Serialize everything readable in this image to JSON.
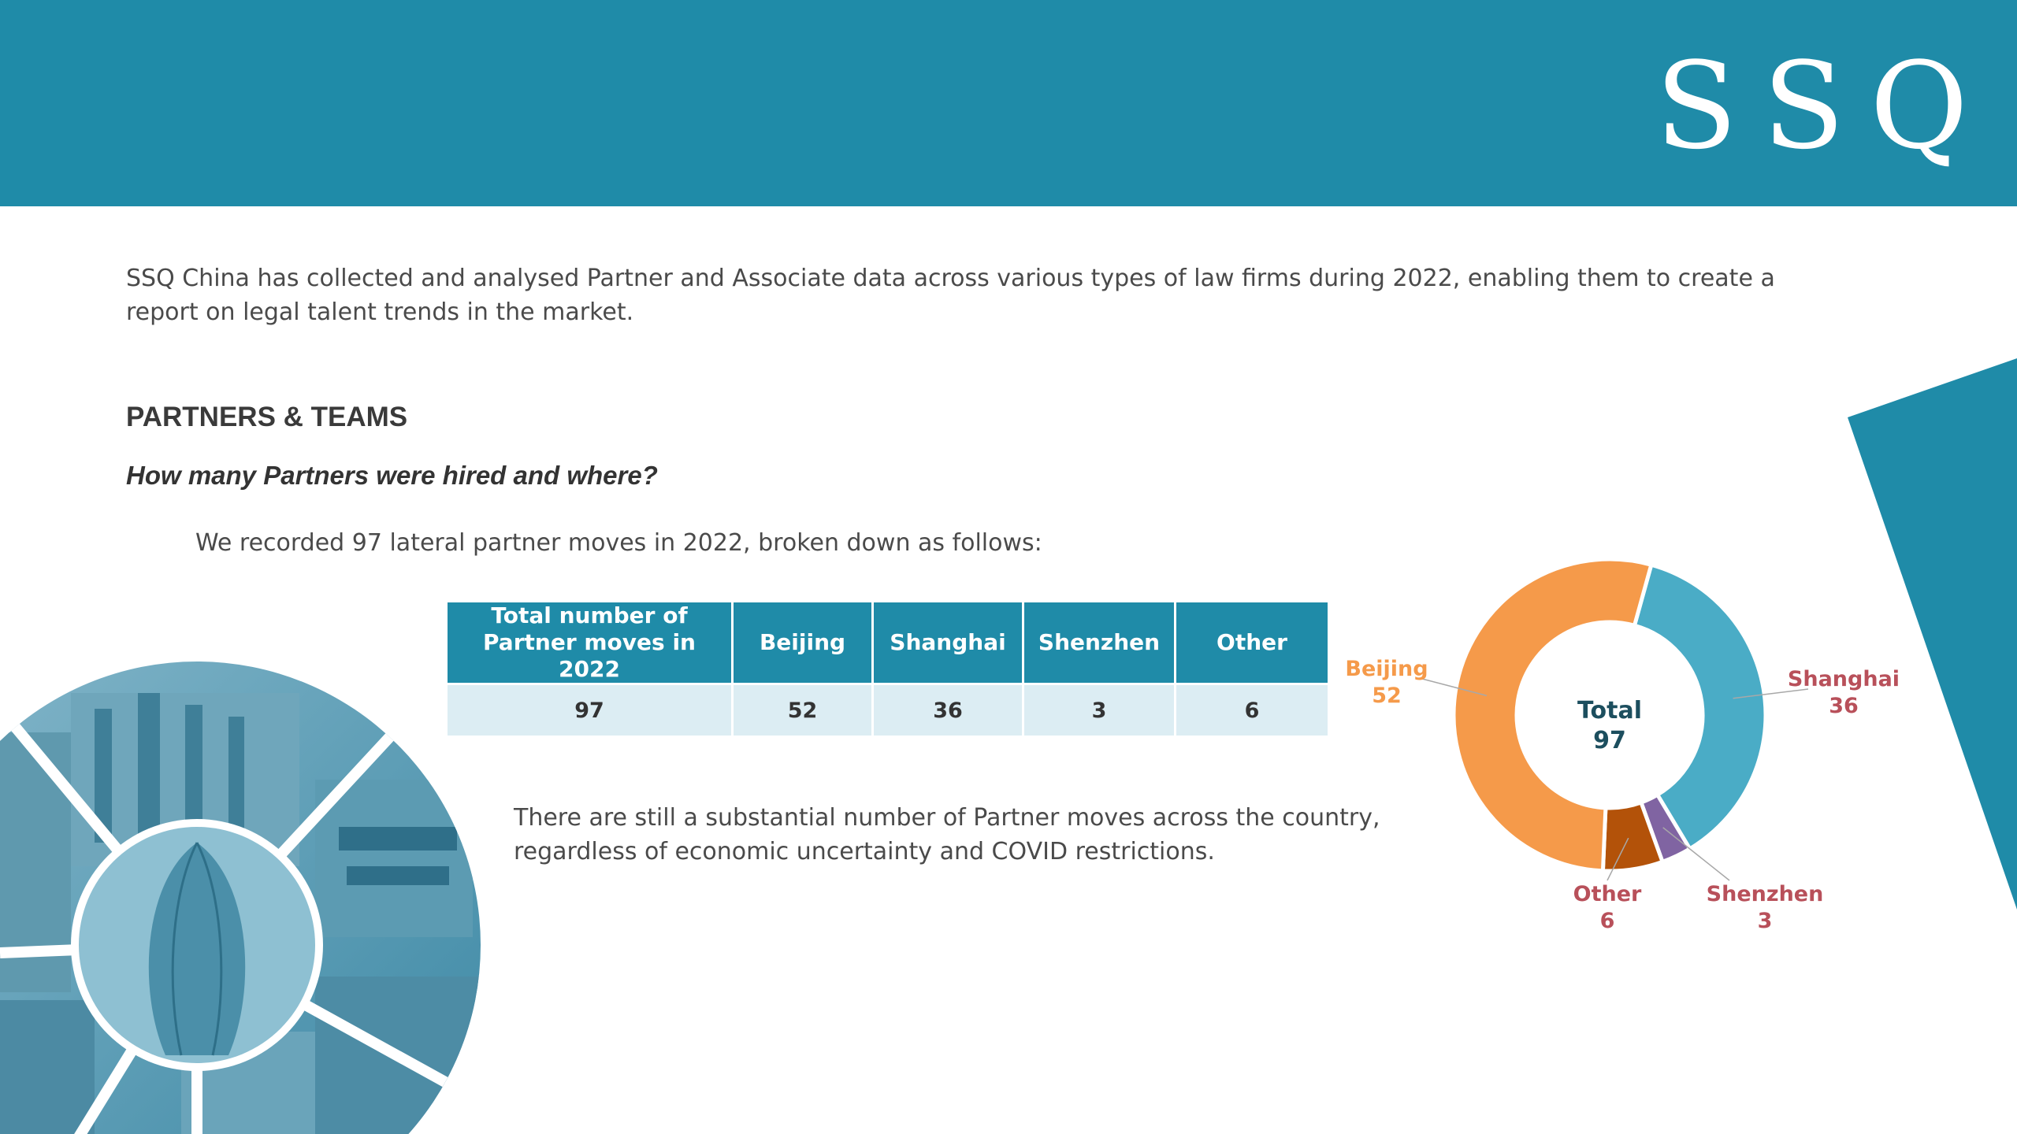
{
  "brand": {
    "logo_letters": [
      "S",
      "S",
      "Q"
    ],
    "primary_color": "#1f8ba8"
  },
  "intro_text": "SSQ China has collected and analysed Partner and Associate data across various types of law firms during 2022, enabling them to create a report on legal talent trends in the market.",
  "section": {
    "heading": "PARTNERS & TEAMS",
    "question": "How many Partners were hired and where?",
    "lead": "We recorded 97 lateral partner moves in 2022, broken down as follows:"
  },
  "table": {
    "headers": [
      "Total number of Partner moves in 2022",
      "Beijing",
      "Shanghai",
      "Shenzhen",
      "Other"
    ],
    "row": [
      "97",
      "52",
      "36",
      "3",
      "6"
    ]
  },
  "note": "There are still a substantial number of Partner moves across the country, regardless of economic uncertainty and COVID restrictions.",
  "chart_data": {
    "type": "pie",
    "categories": [
      "Shanghai",
      "Shenzhen",
      "Other",
      "Beijing"
    ],
    "values": [
      36,
      3,
      6,
      52
    ],
    "colors": [
      "#4aacc6",
      "#8064a2",
      "#b35209",
      "#f59a4a"
    ],
    "label_colors": [
      "#b8505a",
      "#b8505a",
      "#b8505a",
      "#f59a4a"
    ],
    "center_label": "Total",
    "center_value": "97"
  }
}
